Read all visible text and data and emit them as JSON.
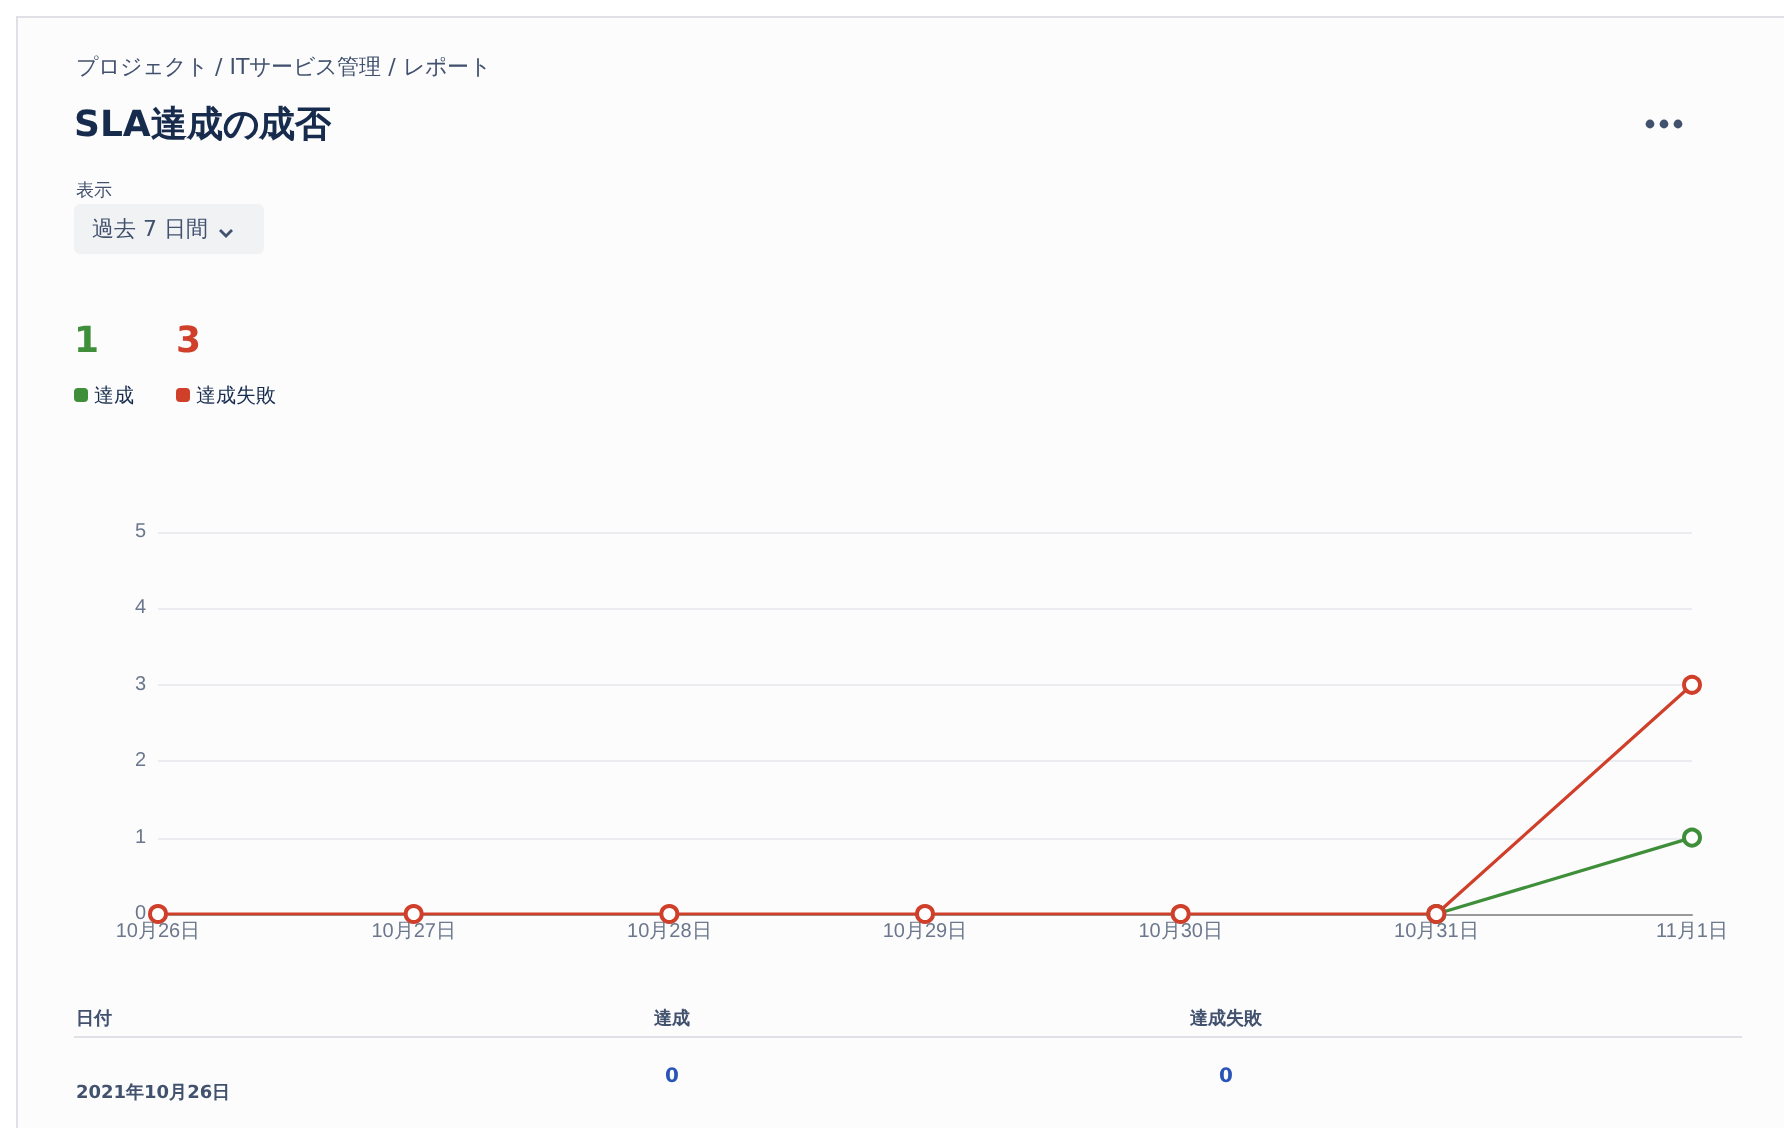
{
  "chart_data": {
    "type": "line",
    "title": "SLA達成の成否",
    "annotations": [
      "プロジェクト / ITサービス管理 / レポート",
      "表示",
      "過去 7 日間",
      "1",
      "3",
      "日付",
      "達成",
      "達成失敗",
      "2021年10月26日",
      "0",
      "0"
    ],
    "categories": [
      "10月26日",
      "10月27日",
      "10月28日",
      "10月29日",
      "10月30日",
      "10月31日",
      "11月1日"
    ],
    "series": [
      {
        "name": "達成",
        "color": "#3e8e3a",
        "values": [
          null,
          null,
          null,
          null,
          null,
          0,
          1
        ]
      },
      {
        "name": "達成失敗",
        "color": "#cf3f2a",
        "values": [
          0,
          0,
          0,
          0,
          0,
          0,
          3
        ]
      }
    ],
    "ylim": [
      0,
      5
    ],
    "yticks": [
      0,
      1,
      2,
      3,
      4,
      5
    ],
    "grid": "y",
    "legend": "top left",
    "marker": "circle",
    "line_style": "solid"
  }
}
